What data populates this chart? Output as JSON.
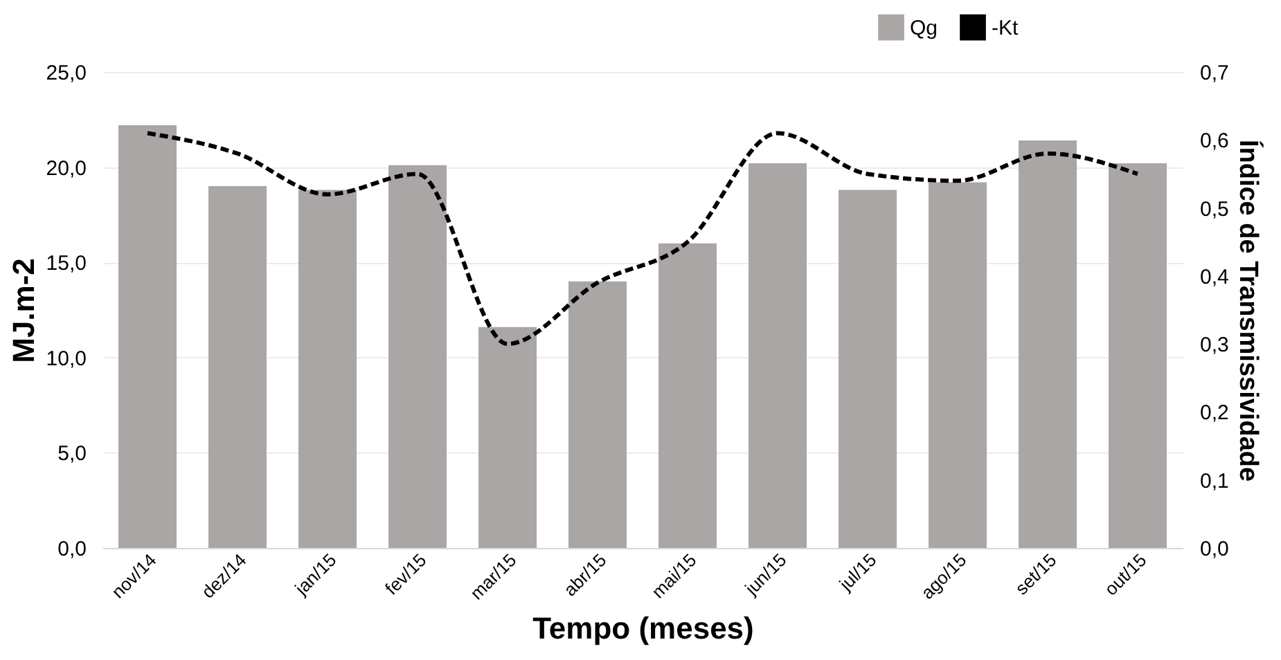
{
  "chart_data": {
    "type": "bar",
    "xlabel": "Tempo (meses)",
    "ylabel": "MJ.m-2",
    "y2label": "Índice de Transmissividade",
    "categories": [
      "nov/14",
      "dez/14",
      "jan/15",
      "fev/15",
      "mar/15",
      "abr/15",
      "mai/15",
      "jun/15",
      "jul/15",
      "ago/15",
      "set/15",
      "out/15"
    ],
    "series": [
      {
        "name": "Qg",
        "type": "bar",
        "color": "#aaa6a6",
        "values": [
          22.2,
          19.0,
          18.8,
          20.1,
          11.6,
          14.0,
          16.0,
          20.2,
          18.8,
          19.2,
          21.4,
          20.2
        ]
      },
      {
        "name": "-Kt",
        "type": "line",
        "axis": "y2",
        "color": "#000000",
        "line_style": "dashed",
        "values": [
          0.61,
          0.58,
          0.52,
          0.55,
          0.3,
          0.39,
          0.45,
          0.61,
          0.55,
          0.54,
          0.58,
          0.55
        ]
      }
    ],
    "ylim": [
      0,
      25
    ],
    "yticks": [
      {
        "value": 0,
        "label": "0,0"
      },
      {
        "value": 5,
        "label": "5,0"
      },
      {
        "value": 10,
        "label": "10,0"
      },
      {
        "value": 15,
        "label": "15,0"
      },
      {
        "value": 20,
        "label": "20,0"
      },
      {
        "value": 25,
        "label": "25,0"
      }
    ],
    "y2lim": [
      0,
      0.7
    ],
    "y2ticks": [
      {
        "value": 0,
        "label": "0,0"
      },
      {
        "value": 0.1,
        "label": "0,1"
      },
      {
        "value": 0.2,
        "label": "0,2"
      },
      {
        "value": 0.3,
        "label": "0,3"
      },
      {
        "value": 0.4,
        "label": "0,4"
      },
      {
        "value": 0.5,
        "label": "0,5"
      },
      {
        "value": 0.6,
        "label": "0,6"
      },
      {
        "value": 0.7,
        "label": "0,7"
      }
    ],
    "grid": "y",
    "legend": "top right"
  }
}
